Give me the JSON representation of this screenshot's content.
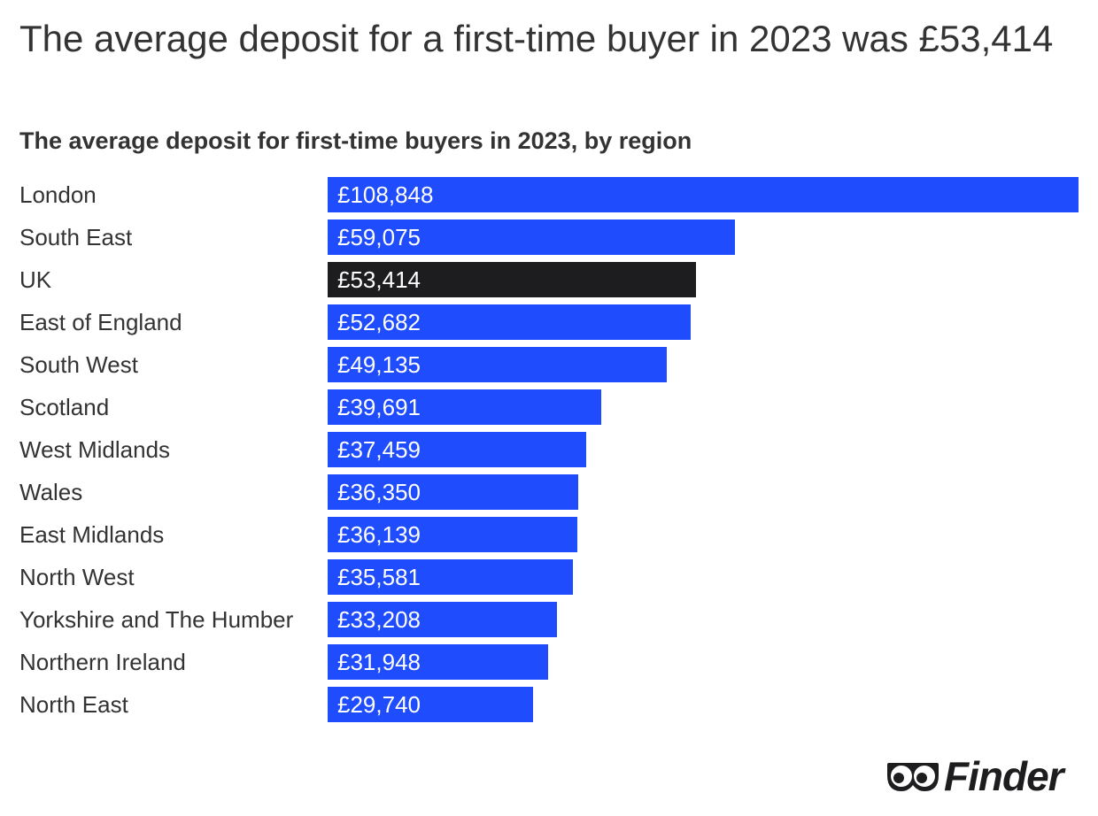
{
  "title": "The average deposit for a first-time buyer in 2023 was £53,414",
  "chart_data": {
    "type": "bar",
    "orientation": "horizontal",
    "title": "The average deposit for first-time buyers in 2023, by region",
    "categories": [
      "London",
      "South East",
      "UK",
      "East of England",
      "South West",
      "Scotland",
      "West Midlands",
      "Wales",
      "East Midlands",
      "North West",
      "Yorkshire and The Humber",
      "Northern Ireland",
      "North East"
    ],
    "values": [
      108848,
      59075,
      53414,
      52682,
      49135,
      39691,
      37459,
      36350,
      36139,
      35581,
      33208,
      31948,
      29740
    ],
    "value_labels": [
      "£108,848",
      "£59,075",
      "£53,414",
      "£52,682",
      "£49,135",
      "£39,691",
      "£37,459",
      "£36,350",
      "£36,139",
      "£35,581",
      "£33,208",
      "£31,948",
      "£29,740"
    ],
    "highlight_category": "UK",
    "xlim": [
      0,
      108848
    ],
    "grid": false,
    "legend": "none"
  },
  "colors": {
    "bar": "#1f4dfd",
    "highlight_bar": "#1d1d1f",
    "text": "#333333"
  },
  "brand": {
    "name": "Finder",
    "icon": "eyes-icon"
  }
}
